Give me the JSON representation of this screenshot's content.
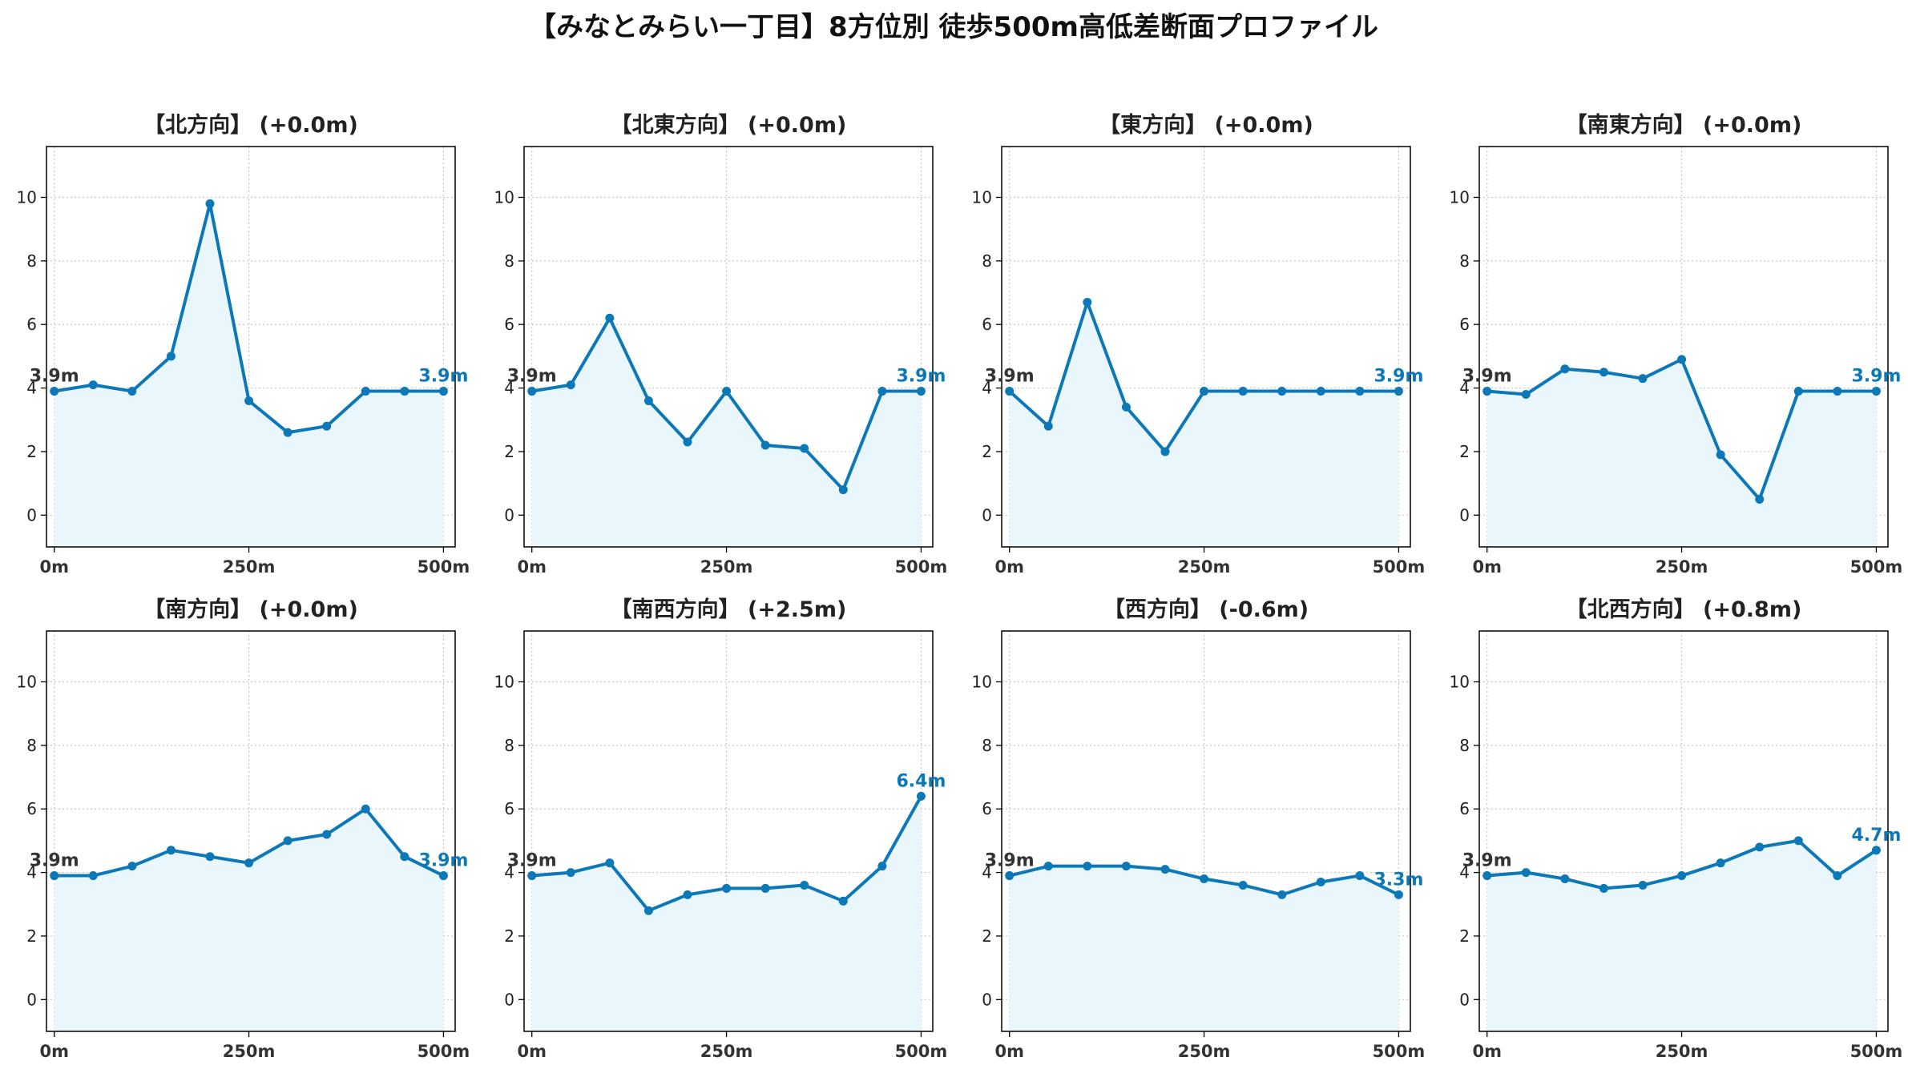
{
  "title": "【みなとみらい一丁目】8方位別 徒歩500m高低差断面プロファイル",
  "colors": {
    "line": "#0c78b8",
    "fill": "#e9f6fc",
    "grid": "#c8c8c8",
    "axis": "#000000",
    "start_label": "#333333",
    "end_label": "#0c78b8"
  },
  "chart_data": [
    {
      "type": "area",
      "title": "【北方向】 (+0.0m)",
      "xlabel": "",
      "ylabel": "",
      "x": [
        0,
        50,
        100,
        150,
        200,
        250,
        300,
        350,
        400,
        450,
        500
      ],
      "series": [
        {
          "values": [
            3.9,
            4.1,
            3.9,
            5.0,
            9.8,
            3.6,
            2.6,
            2.8,
            3.9,
            3.9,
            3.9
          ]
        }
      ],
      "xlim": [
        -10,
        515
      ],
      "ylim": [
        -1,
        11.6
      ],
      "xticks": [
        0,
        250,
        500
      ],
      "xtick_labels": [
        "0m",
        "250m",
        "500m"
      ],
      "yticks": [
        0,
        2,
        4,
        6,
        8,
        10
      ],
      "ytick_labels": [
        "0",
        "2",
        "4",
        "6",
        "8",
        "10"
      ],
      "grid": true,
      "start_label": "3.9m",
      "end_label": "3.9m"
    },
    {
      "type": "area",
      "title": "【北東方向】 (+0.0m)",
      "xlabel": "",
      "ylabel": "",
      "x": [
        0,
        50,
        100,
        150,
        200,
        250,
        300,
        350,
        400,
        450,
        500
      ],
      "series": [
        {
          "values": [
            3.9,
            4.1,
            6.2,
            3.6,
            2.3,
            3.9,
            2.2,
            2.1,
            0.8,
            3.9,
            3.9
          ]
        }
      ],
      "xlim": [
        -10,
        515
      ],
      "ylim": [
        -1,
        11.6
      ],
      "xticks": [
        0,
        250,
        500
      ],
      "xtick_labels": [
        "0m",
        "250m",
        "500m"
      ],
      "yticks": [
        0,
        2,
        4,
        6,
        8,
        10
      ],
      "ytick_labels": [
        "0",
        "2",
        "4",
        "6",
        "8",
        "10"
      ],
      "grid": true,
      "start_label": "3.9m",
      "end_label": "3.9m"
    },
    {
      "type": "area",
      "title": "【東方向】 (+0.0m)",
      "xlabel": "",
      "ylabel": "",
      "x": [
        0,
        50,
        100,
        150,
        200,
        250,
        300,
        350,
        400,
        450,
        500
      ],
      "series": [
        {
          "values": [
            3.9,
            2.8,
            6.7,
            3.4,
            2.0,
            3.9,
            3.9,
            3.9,
            3.9,
            3.9,
            3.9
          ]
        }
      ],
      "xlim": [
        -10,
        515
      ],
      "ylim": [
        -1,
        11.6
      ],
      "xticks": [
        0,
        250,
        500
      ],
      "xtick_labels": [
        "0m",
        "250m",
        "500m"
      ],
      "yticks": [
        0,
        2,
        4,
        6,
        8,
        10
      ],
      "ytick_labels": [
        "0",
        "2",
        "4",
        "6",
        "8",
        "10"
      ],
      "grid": true,
      "start_label": "3.9m",
      "end_label": "3.9m"
    },
    {
      "type": "area",
      "title": "【南東方向】 (+0.0m)",
      "xlabel": "",
      "ylabel": "",
      "x": [
        0,
        50,
        100,
        150,
        200,
        250,
        300,
        350,
        400,
        450,
        500
      ],
      "series": [
        {
          "values": [
            3.9,
            3.8,
            4.6,
            4.5,
            4.3,
            4.9,
            1.9,
            0.5,
            3.9,
            3.9,
            3.9
          ]
        }
      ],
      "xlim": [
        -10,
        515
      ],
      "ylim": [
        -1,
        11.6
      ],
      "xticks": [
        0,
        250,
        500
      ],
      "xtick_labels": [
        "0m",
        "250m",
        "500m"
      ],
      "yticks": [
        0,
        2,
        4,
        6,
        8,
        10
      ],
      "ytick_labels": [
        "0",
        "2",
        "4",
        "6",
        "8",
        "10"
      ],
      "grid": true,
      "start_label": "3.9m",
      "end_label": "3.9m"
    },
    {
      "type": "area",
      "title": "【南方向】 (+0.0m)",
      "xlabel": "",
      "ylabel": "",
      "x": [
        0,
        50,
        100,
        150,
        200,
        250,
        300,
        350,
        400,
        450,
        500
      ],
      "series": [
        {
          "values": [
            3.9,
            3.9,
            4.2,
            4.7,
            4.5,
            4.3,
            5.0,
            5.2,
            6.0,
            4.5,
            3.9
          ]
        }
      ],
      "xlim": [
        -10,
        515
      ],
      "ylim": [
        -1,
        11.6
      ],
      "xticks": [
        0,
        250,
        500
      ],
      "xtick_labels": [
        "0m",
        "250m",
        "500m"
      ],
      "yticks": [
        0,
        2,
        4,
        6,
        8,
        10
      ],
      "ytick_labels": [
        "0",
        "2",
        "4",
        "6",
        "8",
        "10"
      ],
      "grid": true,
      "start_label": "3.9m",
      "end_label": "3.9m"
    },
    {
      "type": "area",
      "title": "【南西方向】 (+2.5m)",
      "xlabel": "",
      "ylabel": "",
      "x": [
        0,
        50,
        100,
        150,
        200,
        250,
        300,
        350,
        400,
        450,
        500
      ],
      "series": [
        {
          "values": [
            3.9,
            4.0,
            4.3,
            2.8,
            3.3,
            3.5,
            3.5,
            3.6,
            3.1,
            4.2,
            6.4
          ]
        }
      ],
      "xlim": [
        -10,
        515
      ],
      "ylim": [
        -1,
        11.6
      ],
      "xticks": [
        0,
        250,
        500
      ],
      "xtick_labels": [
        "0m",
        "250m",
        "500m"
      ],
      "yticks": [
        0,
        2,
        4,
        6,
        8,
        10
      ],
      "ytick_labels": [
        "0",
        "2",
        "4",
        "6",
        "8",
        "10"
      ],
      "grid": true,
      "start_label": "3.9m",
      "end_label": "6.4m"
    },
    {
      "type": "area",
      "title": "【西方向】 (-0.6m)",
      "xlabel": "",
      "ylabel": "",
      "x": [
        0,
        50,
        100,
        150,
        200,
        250,
        300,
        350,
        400,
        450,
        500
      ],
      "series": [
        {
          "values": [
            3.9,
            4.2,
            4.2,
            4.2,
            4.1,
            3.8,
            3.6,
            3.3,
            3.7,
            3.9,
            3.3
          ]
        }
      ],
      "xlim": [
        -10,
        515
      ],
      "ylim": [
        -1,
        11.6
      ],
      "xticks": [
        0,
        250,
        500
      ],
      "xtick_labels": [
        "0m",
        "250m",
        "500m"
      ],
      "yticks": [
        0,
        2,
        4,
        6,
        8,
        10
      ],
      "ytick_labels": [
        "0",
        "2",
        "4",
        "6",
        "8",
        "10"
      ],
      "grid": true,
      "start_label": "3.9m",
      "end_label": "3.3m"
    },
    {
      "type": "area",
      "title": "【北西方向】 (+0.8m)",
      "xlabel": "",
      "ylabel": "",
      "x": [
        0,
        50,
        100,
        150,
        200,
        250,
        300,
        350,
        400,
        450,
        500
      ],
      "series": [
        {
          "values": [
            3.9,
            4.0,
            3.8,
            3.5,
            3.6,
            3.9,
            4.3,
            4.8,
            5.0,
            3.9,
            4.7
          ]
        }
      ],
      "xlim": [
        -10,
        515
      ],
      "ylim": [
        -1,
        11.6
      ],
      "xticks": [
        0,
        250,
        500
      ],
      "xtick_labels": [
        "0m",
        "250m",
        "500m"
      ],
      "yticks": [
        0,
        2,
        4,
        6,
        8,
        10
      ],
      "ytick_labels": [
        "0",
        "2",
        "4",
        "6",
        "8",
        "10"
      ],
      "grid": true,
      "start_label": "3.9m",
      "end_label": "4.7m"
    }
  ]
}
